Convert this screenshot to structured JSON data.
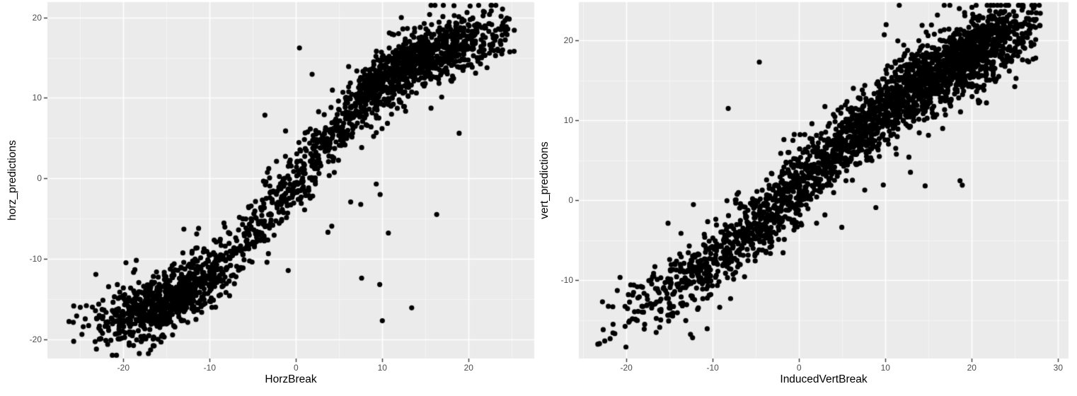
{
  "figure": {
    "background": "#FFFFFF",
    "theme": {
      "panel_background": "#EBEBEB",
      "grid_major_color": "#FFFFFF",
      "grid_minor_color": "#F5F5F5",
      "point_color": "#000000",
      "tick_label_color": "#4D4D4D",
      "axis_title_color": "#000000",
      "tick_mark_color": "#333333"
    }
  },
  "chart_data": [
    {
      "type": "scatter",
      "title": "",
      "xlabel": "HorzBreak",
      "ylabel": "horz_predictions",
      "xlim": [
        -28.8,
        27.6
      ],
      "ylim": [
        -22.4,
        21.9
      ],
      "x_ticks": [
        -20,
        -10,
        0,
        10,
        20
      ],
      "y_ticks": [
        -20,
        -10,
        0,
        10,
        20
      ],
      "minor_grid_step": 5,
      "grid": "major+minor",
      "legend": "none",
      "n_points": 2200,
      "point_radius_px": 3.6,
      "relationship": "y ~ 19*tanh(x/13.5) + noise(sd=1.9); strong positive sigmoidal correlation",
      "trend": {
        "amplitude": 19,
        "x_scale": 13.5,
        "x_center": 0,
        "y_offset": 0,
        "noise_sd": 1.9,
        "wide_noise_frac": 0.025,
        "wide_noise_mult": 3
      },
      "x_mixture": [
        {
          "weight": 0.42,
          "mean": 14,
          "sd": 5.5
        },
        {
          "weight": 0.33,
          "mean": -15,
          "sd": 4.2
        },
        {
          "weight": 0.25,
          "mean": -1,
          "sd": 8
        }
      ],
      "x_range": [
        -26.5,
        25.3
      ],
      "seed": 7,
      "outliers": [
        [
          0.4,
          16.2
        ],
        [
          3.7,
          -6.7
        ],
        [
          10.7,
          -6.8
        ],
        [
          7.6,
          -12.4
        ],
        [
          9.7,
          -13.2
        ],
        [
          13.4,
          -16.1
        ],
        [
          10.0,
          -17.7
        ],
        [
          18.9,
          5.6
        ],
        [
          -19.7,
          -10.5
        ],
        [
          -18.5,
          -10.2
        ],
        [
          16.3,
          -4.5
        ],
        [
          -24.8,
          -19.4
        ],
        [
          -25.8,
          -17.9
        ],
        [
          -26.3,
          -17.8
        ]
      ]
    },
    {
      "type": "scatter",
      "title": "",
      "xlabel": "InducedVertBreak",
      "ylabel": "vert_predictions",
      "xlim": [
        -25.5,
        31.2
      ],
      "ylim": [
        -19.8,
        24.8
      ],
      "x_ticks": [
        -20,
        -10,
        0,
        10,
        20,
        30
      ],
      "y_ticks": [
        -10,
        0,
        10,
        20
      ],
      "minor_grid_step": 5,
      "grid": "major+minor",
      "legend": "none",
      "n_points": 2700,
      "point_radius_px": 3.6,
      "relationship": "y ~ 24*tanh(x/24) + 2 + noise(sd=2.2); strong positive nearly-linear correlation",
      "trend": {
        "amplitude": 24,
        "x_scale": 24,
        "x_center": 0,
        "y_offset": 2,
        "noise_sd": 2.2,
        "wide_noise_frac": 0.03,
        "wide_noise_mult": 2.5
      },
      "x_mixture": [
        {
          "weight": 0.48,
          "mean": 18,
          "sd": 5
        },
        {
          "weight": 0.35,
          "mean": 4,
          "sd": 6.5
        },
        {
          "weight": 0.17,
          "mean": -10,
          "sd": 6
        }
      ],
      "x_range": [
        -24,
        28
      ],
      "seed": 19,
      "outliers": [
        [
          -4.6,
          17.3
        ],
        [
          12.9,
          3.5
        ],
        [
          14.6,
          1.8
        ],
        [
          18.9,
          1.9
        ],
        [
          -8.2,
          11.5
        ],
        [
          20.8,
          12.2
        ],
        [
          21.7,
          12.2
        ],
        [
          27.4,
          17.8
        ],
        [
          -22.5,
          -17.6
        ],
        [
          -23.3,
          -18.0
        ]
      ]
    }
  ]
}
